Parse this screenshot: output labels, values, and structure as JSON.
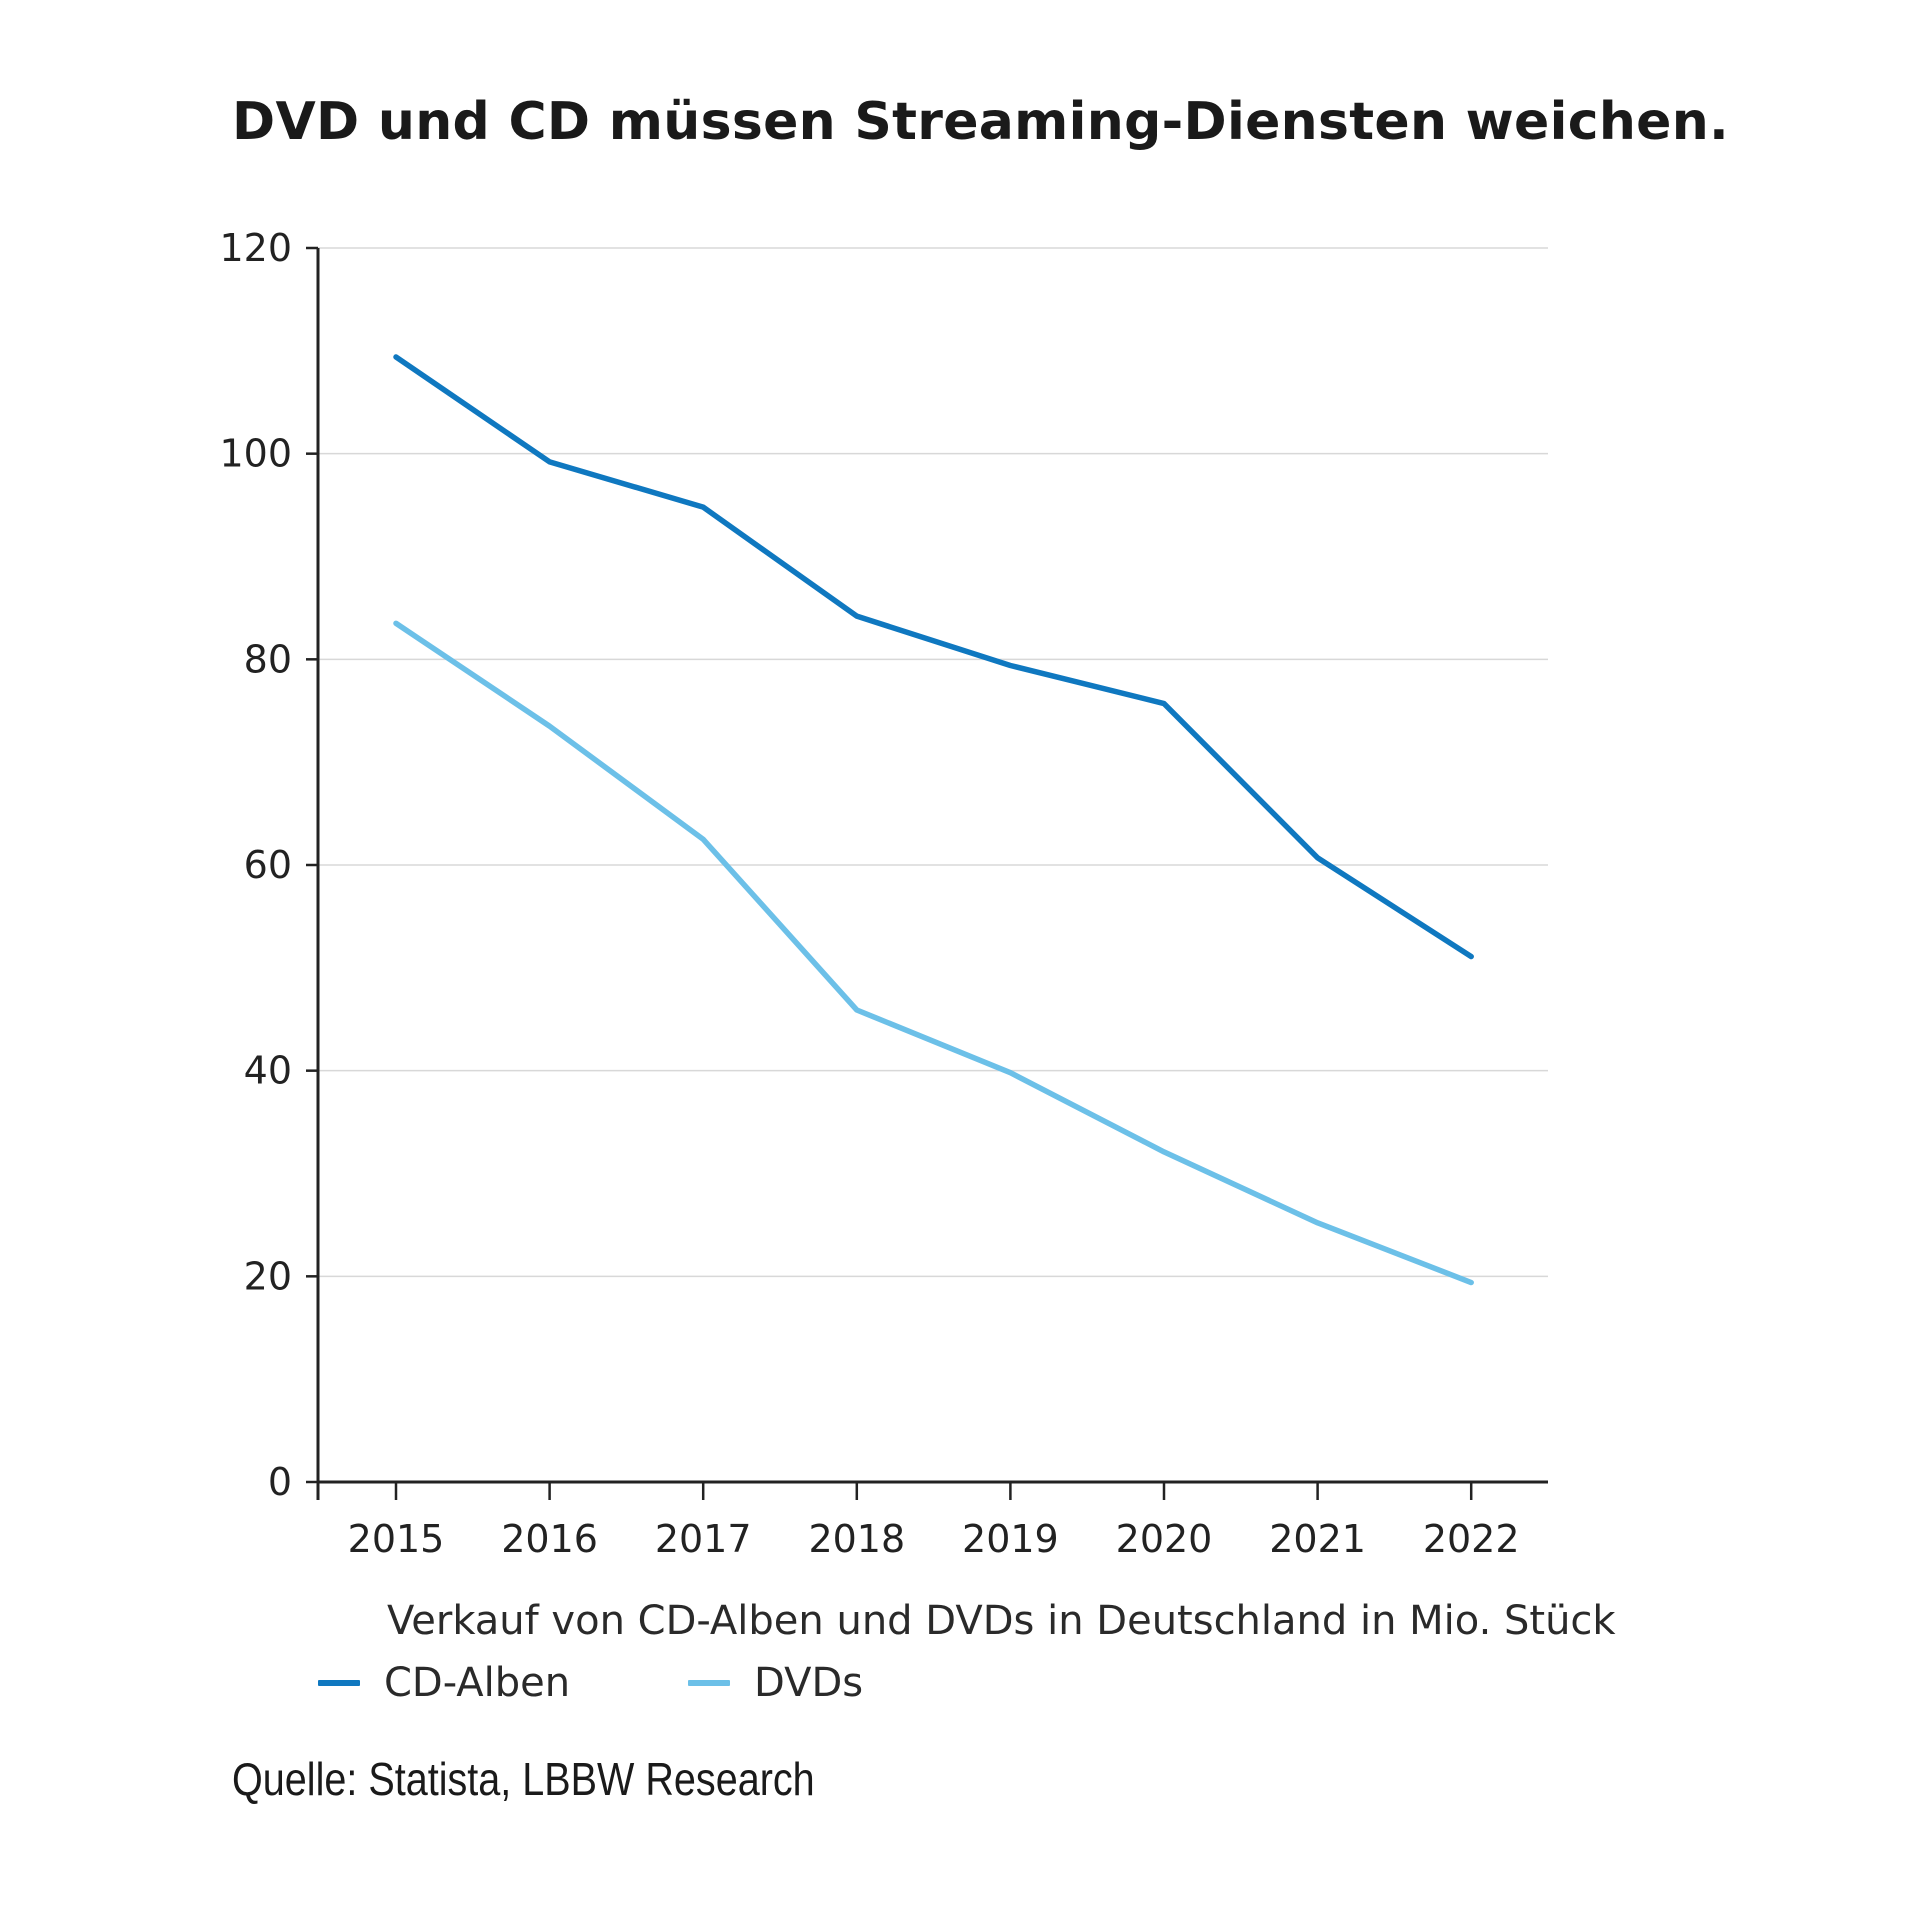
{
  "chart_data": {
    "type": "line",
    "title": "DVD und CD müssen Streaming-Diensten weichen.",
    "caption": "Verkauf von CD-Alben und DVDs in Deutschland in Mio. Stück",
    "source": "Quelle: Statista, LBBW Research",
    "x": [
      "2015",
      "2016",
      "2017",
      "2018",
      "2019",
      "2020",
      "2021",
      "2022"
    ],
    "ylim": [
      0,
      120
    ],
    "yticks": [
      0,
      20,
      40,
      60,
      80,
      100,
      120
    ],
    "grid": true,
    "legend_position": "bottom-left",
    "series": [
      {
        "name": "CD-Alben",
        "color": "#0f78c0",
        "values": [
          109.4,
          99.2,
          94.8,
          84.2,
          79.4,
          75.7,
          60.7,
          51.1
        ]
      },
      {
        "name": "DVDs",
        "color": "#6cc0e8",
        "values": [
          83.5,
          73.5,
          62.5,
          45.9,
          39.8,
          32.1,
          25.2,
          19.4
        ]
      }
    ]
  }
}
